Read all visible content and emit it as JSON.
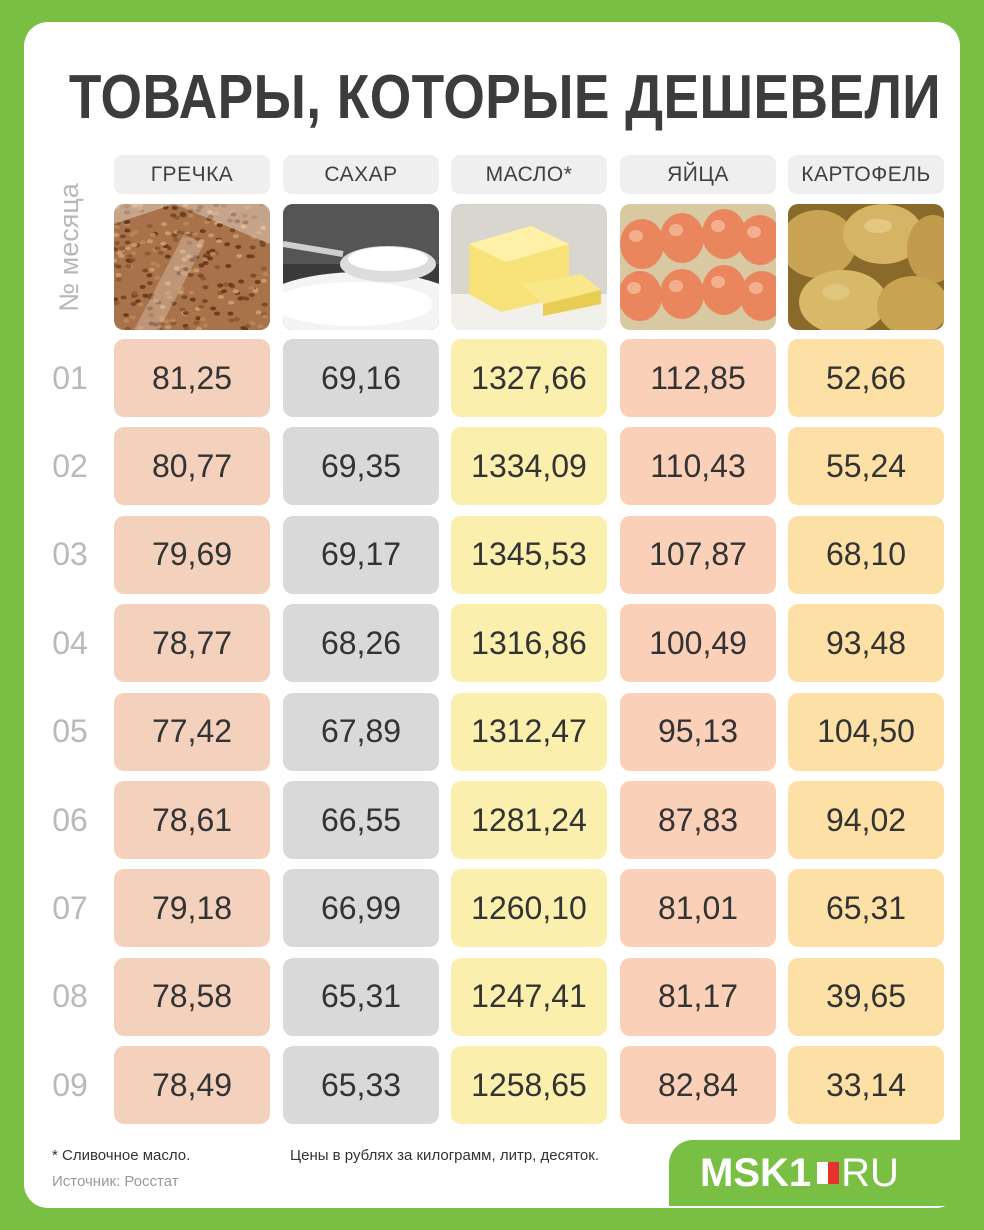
{
  "title": "ТОВАРЫ, КОТОРЫЕ ДЕШЕВЕЛИ",
  "row_axis_label": "№ месяца",
  "footnote": "* Сливочное масло.",
  "units_note": "Цены в рублях за килограмм, литр, десяток.",
  "source": "Источник: Росстат",
  "logo": {
    "main": "MSK1",
    "suffix": "RU"
  },
  "chart_data": {
    "type": "table",
    "title": "ТОВАРЫ, КОТОРЫЕ ДЕШЕВЕЛИ",
    "row_label": "№ месяца",
    "columns": [
      {
        "name": "ГРЕЧКА",
        "icon": "buckwheat-photo",
        "color": "#f3d1bd"
      },
      {
        "name": "САХАР",
        "icon": "sugar-photo",
        "color": "#d9d9d9"
      },
      {
        "name": "МАСЛО*",
        "icon": "butter-photo",
        "color": "#fbefae"
      },
      {
        "name": "ЯЙЦА",
        "icon": "eggs-photo",
        "color": "#fad0b8"
      },
      {
        "name": "КАРТОФЕЛЬ",
        "icon": "potatoes-photo",
        "color": "#fde0a6"
      }
    ],
    "rows": [
      {
        "month": "01",
        "values": [
          "81,25",
          "69,16",
          "1327,66",
          "112,85",
          "52,66"
        ]
      },
      {
        "month": "02",
        "values": [
          "80,77",
          "69,35",
          "1334,09",
          "110,43",
          "55,24"
        ]
      },
      {
        "month": "03",
        "values": [
          "79,69",
          "69,17",
          "1345,53",
          "107,87",
          "68,10"
        ]
      },
      {
        "month": "04",
        "values": [
          "78,77",
          "68,26",
          "1316,86",
          "100,49",
          "93,48"
        ]
      },
      {
        "month": "05",
        "values": [
          "77,42",
          "67,89",
          "1312,47",
          "95,13",
          "104,50"
        ]
      },
      {
        "month": "06",
        "values": [
          "78,61",
          "66,55",
          "1281,24",
          "87,83",
          "94,02"
        ]
      },
      {
        "month": "07",
        "values": [
          "79,18",
          "66,99",
          "1260,10",
          "81,01",
          "65,31"
        ]
      },
      {
        "month": "08",
        "values": [
          "78,58",
          "65,31",
          "1247,41",
          "81,17",
          "39,65"
        ]
      },
      {
        "month": "09",
        "values": [
          "78,49",
          "65,33",
          "1258,65",
          "82,84",
          "33,14"
        ]
      }
    ]
  }
}
